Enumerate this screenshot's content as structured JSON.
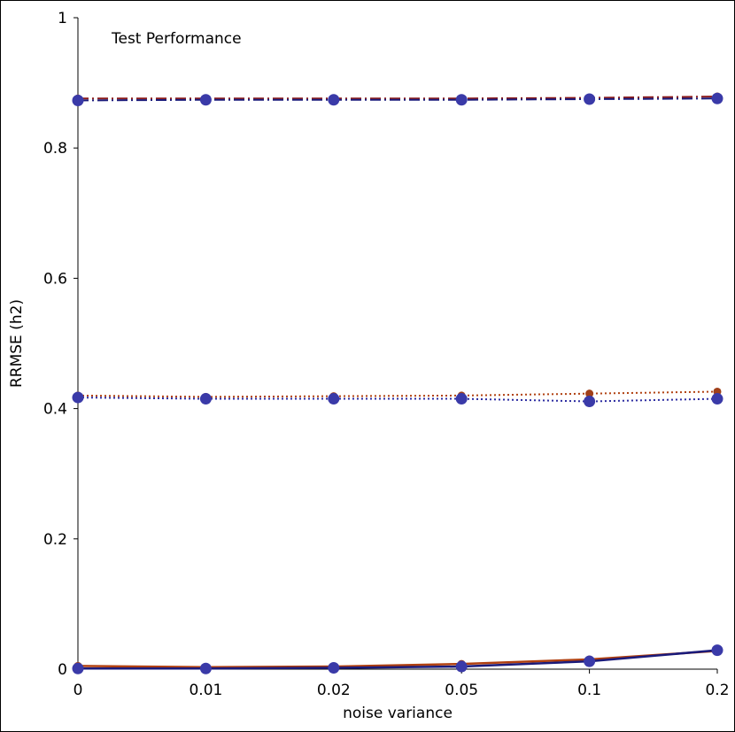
{
  "chart_data": {
    "type": "line",
    "title": "Test Performance",
    "xlabel": "noise variance",
    "ylabel": "RRMSE (h2)",
    "categories": [
      "0",
      "0.01",
      "0.02",
      "0.05",
      "0.1",
      "0.2"
    ],
    "ylim": [
      0,
      1
    ],
    "yticks": [
      "0",
      "0.2",
      "0.4",
      "0.6",
      "0.8",
      "1"
    ],
    "grid": false,
    "series": [
      {
        "style": "dashdot",
        "color": "#8b1a1a",
        "marker_color": "#a0401a",
        "marker_size": "small",
        "values": [
          0.876,
          0.876,
          0.876,
          0.876,
          0.877,
          0.879
        ]
      },
      {
        "style": "dashdot",
        "color": "#1a1a7a",
        "marker_color": "#3a3aa8",
        "marker_size": "large",
        "values": [
          0.873,
          0.874,
          0.874,
          0.874,
          0.875,
          0.876
        ]
      },
      {
        "style": "dotted",
        "color": "#b04010",
        "marker_color": "#a0401a",
        "marker_size": "small",
        "values": [
          0.42,
          0.418,
          0.419,
          0.42,
          0.423,
          0.426
        ]
      },
      {
        "style": "dotted",
        "color": "#2a2aa0",
        "marker_color": "#3a3aa8",
        "marker_size": "large",
        "values": [
          0.417,
          0.415,
          0.415,
          0.415,
          0.411,
          0.415
        ]
      },
      {
        "style": "solid",
        "color": "#b04010",
        "marker_color": "#a0401a",
        "marker_size": "small",
        "values": [
          0.005,
          0.003,
          0.004,
          0.008,
          0.015,
          0.028
        ]
      },
      {
        "style": "solid",
        "color": "#1a1a7a",
        "marker_color": "#3a3aa8",
        "marker_size": "large",
        "values": [
          0.001,
          0.001,
          0.002,
          0.004,
          0.012,
          0.029
        ]
      }
    ]
  }
}
